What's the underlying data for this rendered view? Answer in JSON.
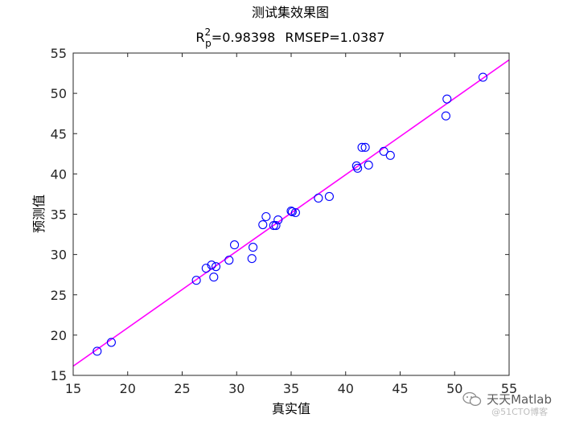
{
  "chart_data": {
    "type": "scatter",
    "title": "测试集效果图",
    "subtitle": {
      "r_letter": "R",
      "r_sup": "2",
      "r_sub": "p",
      "r_value": "=0.98398",
      "rmsep": "RMSEP=1.0387"
    },
    "xlabel": "真实值",
    "ylabel": "预测值",
    "xlim": [
      15,
      55
    ],
    "ylim": [
      15,
      55
    ],
    "xticks": [
      15,
      20,
      25,
      30,
      35,
      40,
      45,
      50,
      55
    ],
    "yticks": [
      15,
      20,
      25,
      30,
      35,
      40,
      45,
      50,
      55
    ],
    "points": [
      [
        17.2,
        18.0
      ],
      [
        18.5,
        19.1
      ],
      [
        26.3,
        26.8
      ],
      [
        27.2,
        28.3
      ],
      [
        27.7,
        28.7
      ],
      [
        27.9,
        27.2
      ],
      [
        28.1,
        28.5
      ],
      [
        29.3,
        29.3
      ],
      [
        29.8,
        31.2
      ],
      [
        31.4,
        29.5
      ],
      [
        31.5,
        30.9
      ],
      [
        32.4,
        33.7
      ],
      [
        32.7,
        34.7
      ],
      [
        33.4,
        33.6
      ],
      [
        33.6,
        33.6
      ],
      [
        33.8,
        34.3
      ],
      [
        35.0,
        35.4
      ],
      [
        35.1,
        35.3
      ],
      [
        35.4,
        35.2
      ],
      [
        37.5,
        37.0
      ],
      [
        38.5,
        37.2
      ],
      [
        41.0,
        41.0
      ],
      [
        41.1,
        40.7
      ],
      [
        41.5,
        43.3
      ],
      [
        41.8,
        43.3
      ],
      [
        42.1,
        41.1
      ],
      [
        43.5,
        42.8
      ],
      [
        44.1,
        42.3
      ],
      [
        49.2,
        47.2
      ],
      [
        49.3,
        49.3
      ],
      [
        52.6,
        52.0
      ]
    ],
    "fit_line": {
      "slope": 0.95,
      "intercept": 1.9
    },
    "colors": {
      "points": "#0000ff",
      "line": "#ff00ff",
      "axes": "#262626"
    },
    "grid": false,
    "legend": "none"
  },
  "watermark": {
    "line1": "天天Matlab",
    "line2": "@51CTO博客"
  }
}
